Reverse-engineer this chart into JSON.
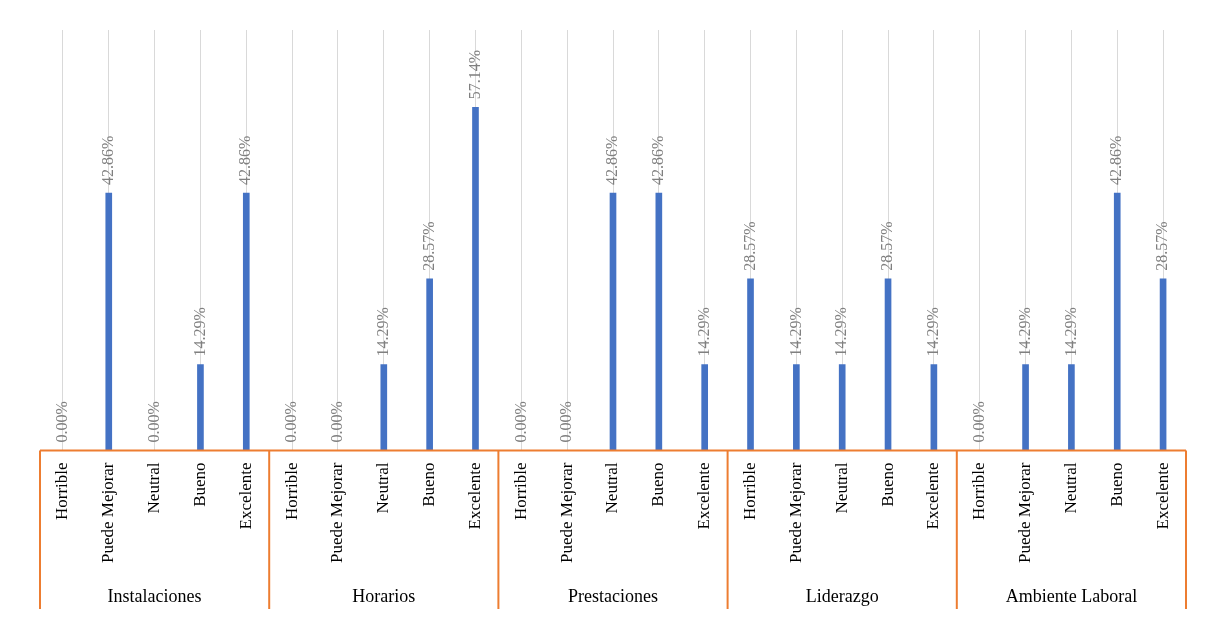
{
  "chart_data": {
    "type": "bar",
    "color": "#4472c4",
    "grid": "x",
    "legend": false,
    "categories": [
      "Horrible",
      "Puede Mejorar",
      "Neutral",
      "Bueno",
      "Excelente",
      "Horrible",
      "Puede Mejorar",
      "Neutral",
      "Bueno",
      "Excelente",
      "Horrible",
      "Puede Mejorar",
      "Neutral",
      "Bueno",
      "Excelente",
      "Horrible",
      "Puede Mejorar",
      "Neutral",
      "Bueno",
      "Excelente",
      "Horrible",
      "Puede Mejorar",
      "Neutral",
      "Bueno",
      "Excelente"
    ],
    "values": [
      0,
      42.86,
      0,
      14.29,
      42.86,
      0,
      0,
      14.29,
      28.57,
      57.14,
      0,
      0,
      42.86,
      42.86,
      14.29,
      28.57,
      14.29,
      14.29,
      28.57,
      14.29,
      0,
      14.29,
      14.29,
      42.86,
      28.57
    ],
    "value_labels": [
      "0.00%",
      "42.86%",
      "0.00%",
      "14.29%",
      "42.86%",
      "0.00%",
      "0.00%",
      "14.29%",
      "28.57%",
      "57.14%",
      "0.00%",
      "0.00%",
      "42.86%",
      "42.86%",
      "14.29%",
      "28.57%",
      "14.29%",
      "14.29%",
      "28.57%",
      "14.29%",
      "0.00%",
      "14.29%",
      "14.29%",
      "42.86%",
      "28.57%"
    ],
    "annotations": [
      "Instalaciones",
      "Horarios",
      "Prestaciones",
      "Liderazgo",
      "Ambiente Laboral"
    ]
  }
}
